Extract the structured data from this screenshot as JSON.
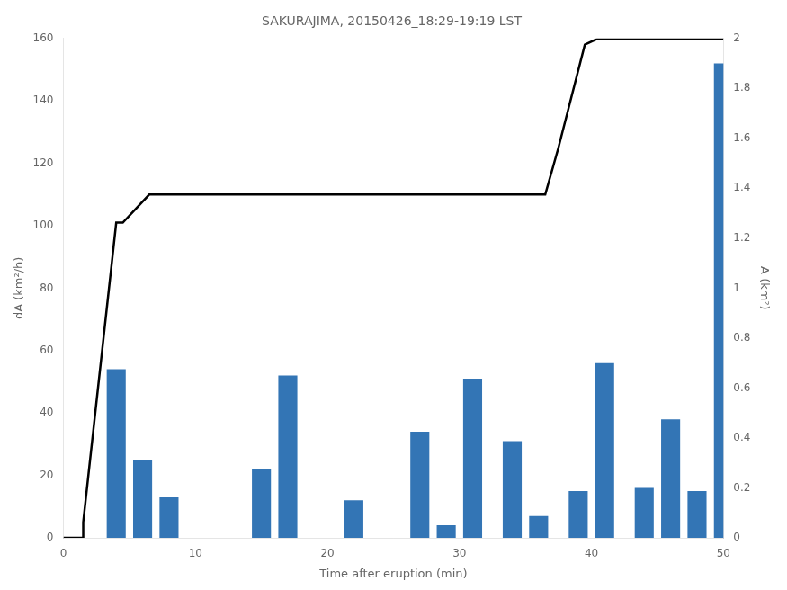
{
  "chart_data": {
    "type": "bar",
    "title": "SAKURAJIMA, 20150426_18:29-19:19 LST",
    "xlabel": "Time after eruption (min)",
    "ylabel": "dA (km²/h)",
    "y2label": "A (km²)",
    "xlim": [
      0,
      50
    ],
    "xticks": [
      0,
      10,
      20,
      30,
      40,
      50
    ],
    "ylim": [
      0,
      160
    ],
    "yticks": [
      0,
      20,
      40,
      60,
      80,
      100,
      120,
      140,
      160
    ],
    "y2lim": [
      0,
      2
    ],
    "y2ticks": [
      0,
      0.2,
      0.4,
      0.6,
      0.8,
      1,
      1.2,
      1.4,
      1.6,
      1.8,
      2
    ],
    "grid": false,
    "series": [
      {
        "type": "bar",
        "color": "#3375b5",
        "x": [
          4,
          6,
          8,
          10,
          15,
          17,
          22,
          27,
          29,
          31,
          34,
          36,
          39,
          41,
          44,
          46,
          48,
          50
        ],
        "values": [
          54,
          25,
          13,
          0,
          22,
          52,
          12,
          34,
          4,
          51,
          31,
          7,
          15,
          56,
          16,
          38,
          15,
          152
        ]
      },
      {
        "type": "line",
        "color": "black",
        "x": [
          0,
          1.5,
          1.5,
          4.0,
          4.5,
          6.5,
          7.0,
          36.0,
          36.5,
          37.5,
          39.5,
          40.5,
          50.0
        ],
        "values": [
          0,
          0,
          5,
          101,
          101,
          110,
          110,
          110,
          110,
          125,
          158,
          160,
          160
        ]
      }
    ]
  }
}
